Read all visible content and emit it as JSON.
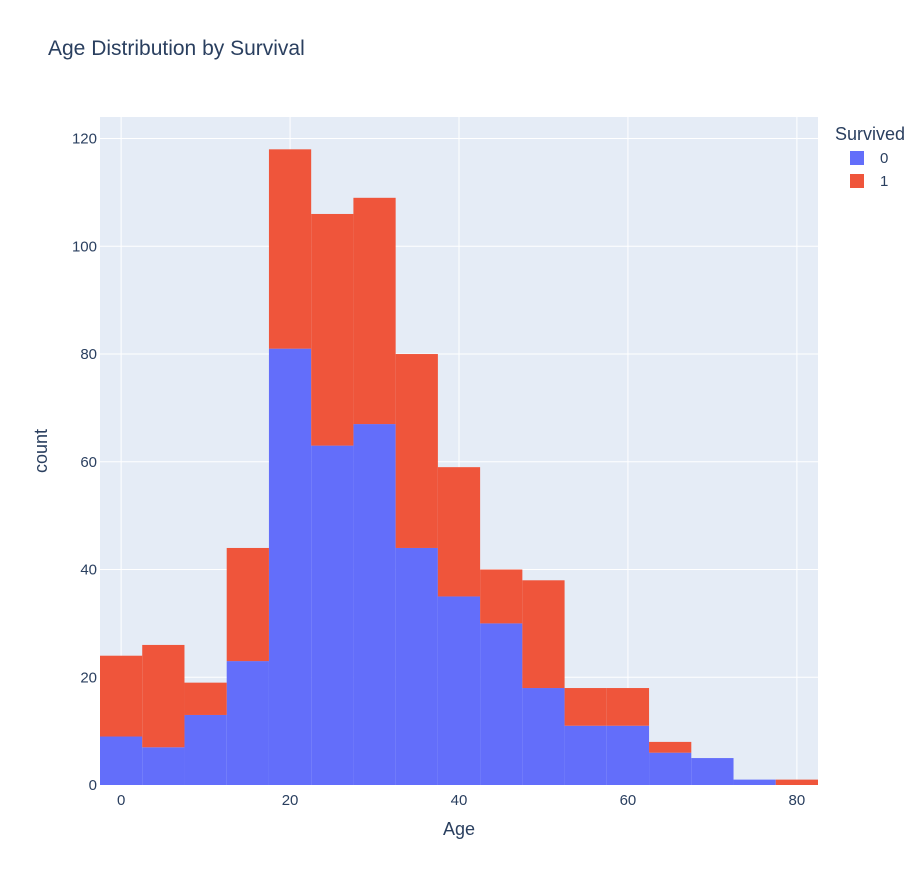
{
  "chart_data": {
    "type": "bar",
    "title": "Age Distribution by Survival",
    "xlabel": "Age",
    "ylabel": "count",
    "bin_width": 5,
    "xlim": [
      -2.5,
      82.5
    ],
    "ylim": [
      0,
      124
    ],
    "x_ticks": [
      0,
      20,
      40,
      60,
      80
    ],
    "y_ticks": [
      0,
      20,
      40,
      60,
      80,
      100,
      120
    ],
    "bin_starts": [
      -2.5,
      2.5,
      7.5,
      12.5,
      17.5,
      22.5,
      27.5,
      32.5,
      37.5,
      42.5,
      47.5,
      52.5,
      57.5,
      62.5,
      67.5,
      72.5,
      77.5
    ],
    "stacked": true,
    "grid": true,
    "legend": {
      "title": "Survived",
      "position": "top-right"
    },
    "series": [
      {
        "name": "0",
        "color": "#636efa",
        "values": [
          9,
          7,
          13,
          23,
          81,
          63,
          67,
          44,
          35,
          30,
          18,
          11,
          11,
          6,
          5,
          1,
          0
        ]
      },
      {
        "name": "1",
        "color": "#ef553b",
        "values": [
          15,
          19,
          6,
          21,
          37,
          43,
          42,
          36,
          24,
          10,
          20,
          7,
          7,
          2,
          0,
          0,
          1
        ]
      }
    ],
    "colors": {
      "plot_bg": "#e5ecf6",
      "text": "#2a3f5f",
      "grid": "#ffffff"
    }
  }
}
